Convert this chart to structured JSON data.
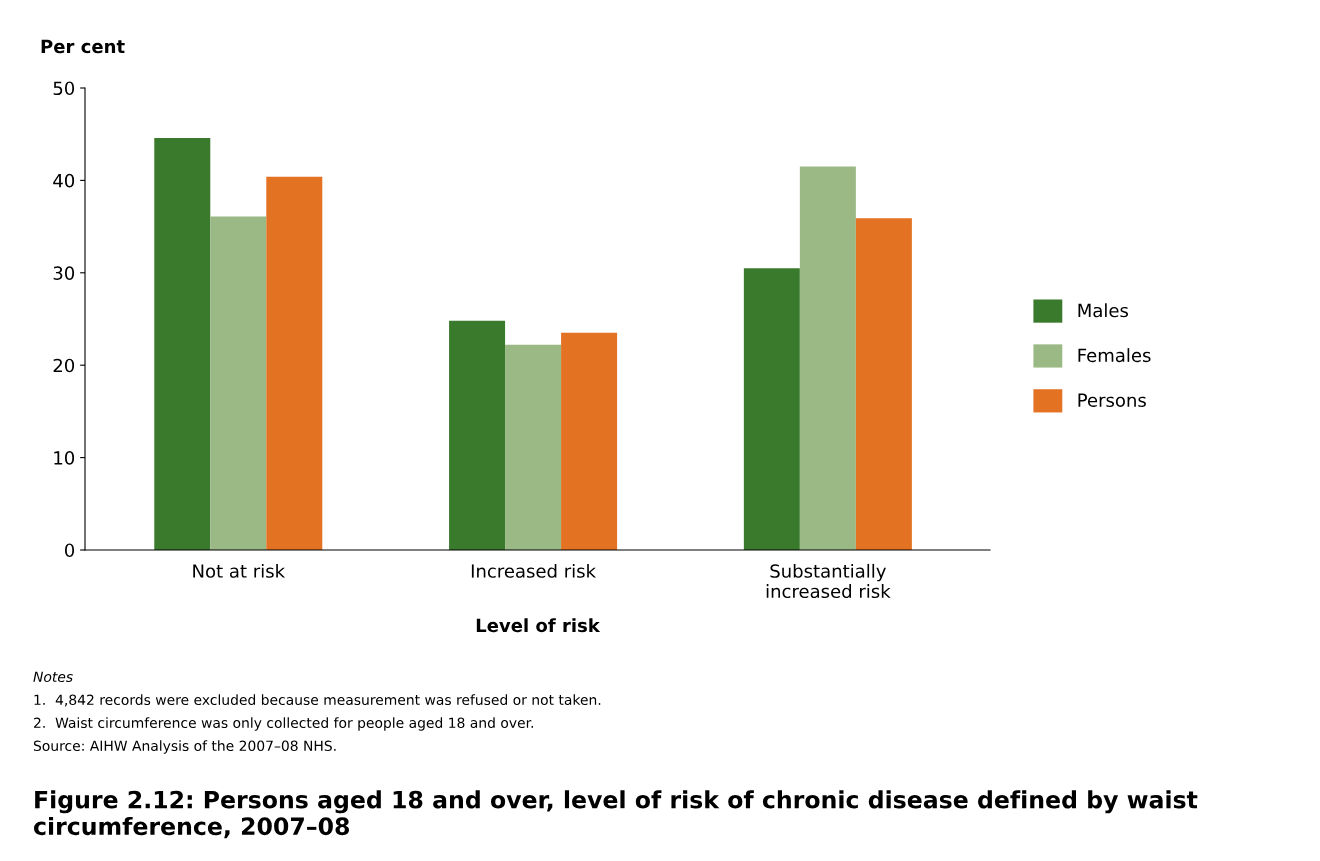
{
  "chart_data": {
    "type": "bar",
    "title": "Figure 2.12: Persons aged 18 and over, level of risk of chronic disease defined by waist circumference, 2007–08",
    "ylabel": "Per cent",
    "xlabel": "Level of risk",
    "categories": [
      "Not at risk",
      "Increased risk",
      "Substantially\nincreased risk"
    ],
    "series": [
      {
        "name": "Males",
        "color": "#3a7a2c",
        "values": [
          44.6,
          24.8,
          30.5
        ]
      },
      {
        "name": "Females",
        "color": "#9ab985",
        "values": [
          36.1,
          22.2,
          41.5
        ]
      },
      {
        "name": "Persons",
        "color": "#e37222",
        "values": [
          40.4,
          23.5,
          35.9
        ]
      }
    ],
    "ylim": [
      0,
      50
    ],
    "yticks": [
      0,
      10,
      20,
      30,
      40,
      50
    ],
    "grid": false,
    "legend": "right",
    "annotations": [
      "Notes",
      "1.  4,842 records were excluded because measurement was refused or not taken.",
      "2.  Waist circumference was only collected for people aged 18 and over.",
      "Source: AIHW Analysis of the 2007–08 NHS."
    ]
  }
}
